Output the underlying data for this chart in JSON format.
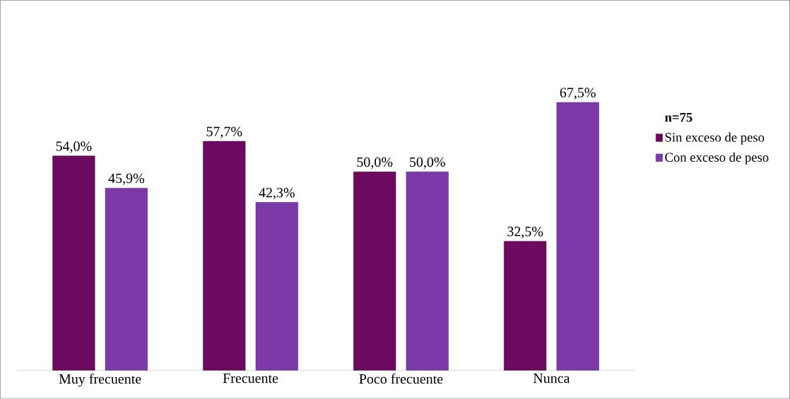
{
  "chart_data": {
    "type": "bar",
    "legend_title": "n=75",
    "legend": "right",
    "categories": [
      "Muy frecuente",
      "Frecuente",
      "Poco frecuente",
      "Nunca"
    ],
    "series": [
      {
        "name": "Sin exceso de peso",
        "color": "#6b0a5e",
        "values": [
          54.0,
          57.7,
          50.0,
          32.5
        ],
        "value_labels": [
          "54,0%",
          "57,7%",
          "50,0%",
          "32,5%"
        ]
      },
      {
        "name": "Con exceso de peso",
        "color": "#7b3aa8",
        "values": [
          45.9,
          42.3,
          50.0,
          67.5
        ],
        "value_labels": [
          "45,9%",
          "42,3%",
          "50,0%",
          "67,5%"
        ]
      }
    ]
  }
}
